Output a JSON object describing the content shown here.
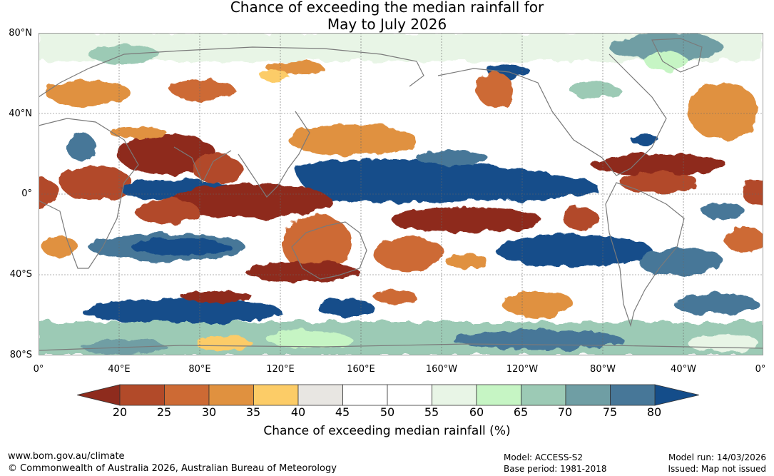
{
  "title": {
    "line1": "Chance of exceeding the median rainfall for",
    "line2": "May to July 2026"
  },
  "map": {
    "lat_labels": [
      "80°N",
      "40°N",
      "0°",
      "40°S",
      "80°S"
    ],
    "lon_labels": [
      "0°",
      "40°E",
      "80°E",
      "120°E",
      "160°E",
      "160°W",
      "120°W",
      "80°W",
      "40°W",
      "0°"
    ],
    "colors": {
      "c20": "#8e2b1d",
      "c25": "#b24a29",
      "c30": "#cd6a34",
      "c35": "#e0913f",
      "c40": "#fccc67",
      "c45": "#e8e6e2",
      "c55": "#ffffff",
      "c60": "#e8f5e6",
      "c65": "#c6f5c4",
      "c70": "#9ccab5",
      "c75": "#6f9ea4",
      "c80": "#477798",
      "c85": "#144d8a"
    }
  },
  "colorbar": {
    "ticks": [
      "20",
      "25",
      "30",
      "35",
      "40",
      "45",
      "50",
      "55",
      "60",
      "65",
      "70",
      "75",
      "80"
    ],
    "colors": [
      "#b24a29",
      "#cd6a34",
      "#e0913f",
      "#fccc67",
      "#e8e6e2",
      "#ffffff",
      "#ffffff",
      "#e8f5e6",
      "#c6f5c4",
      "#9ccab5",
      "#6f9ea4",
      "#477798"
    ],
    "low_color": "#8e2b1d",
    "high_color": "#144d8a",
    "label": "Chance of exceeding median rainfall (%)"
  },
  "footer": {
    "url": "www.bom.gov.au/climate",
    "copyright": "© Commonwealth of Australia 2026, Australian Bureau of Meteorology",
    "model": "Model: ACCESS-S2",
    "base_period": "Base period: 1981-2018",
    "model_run": "Model run: 14/03/2026",
    "issued": "Issued: Map not issued"
  }
}
